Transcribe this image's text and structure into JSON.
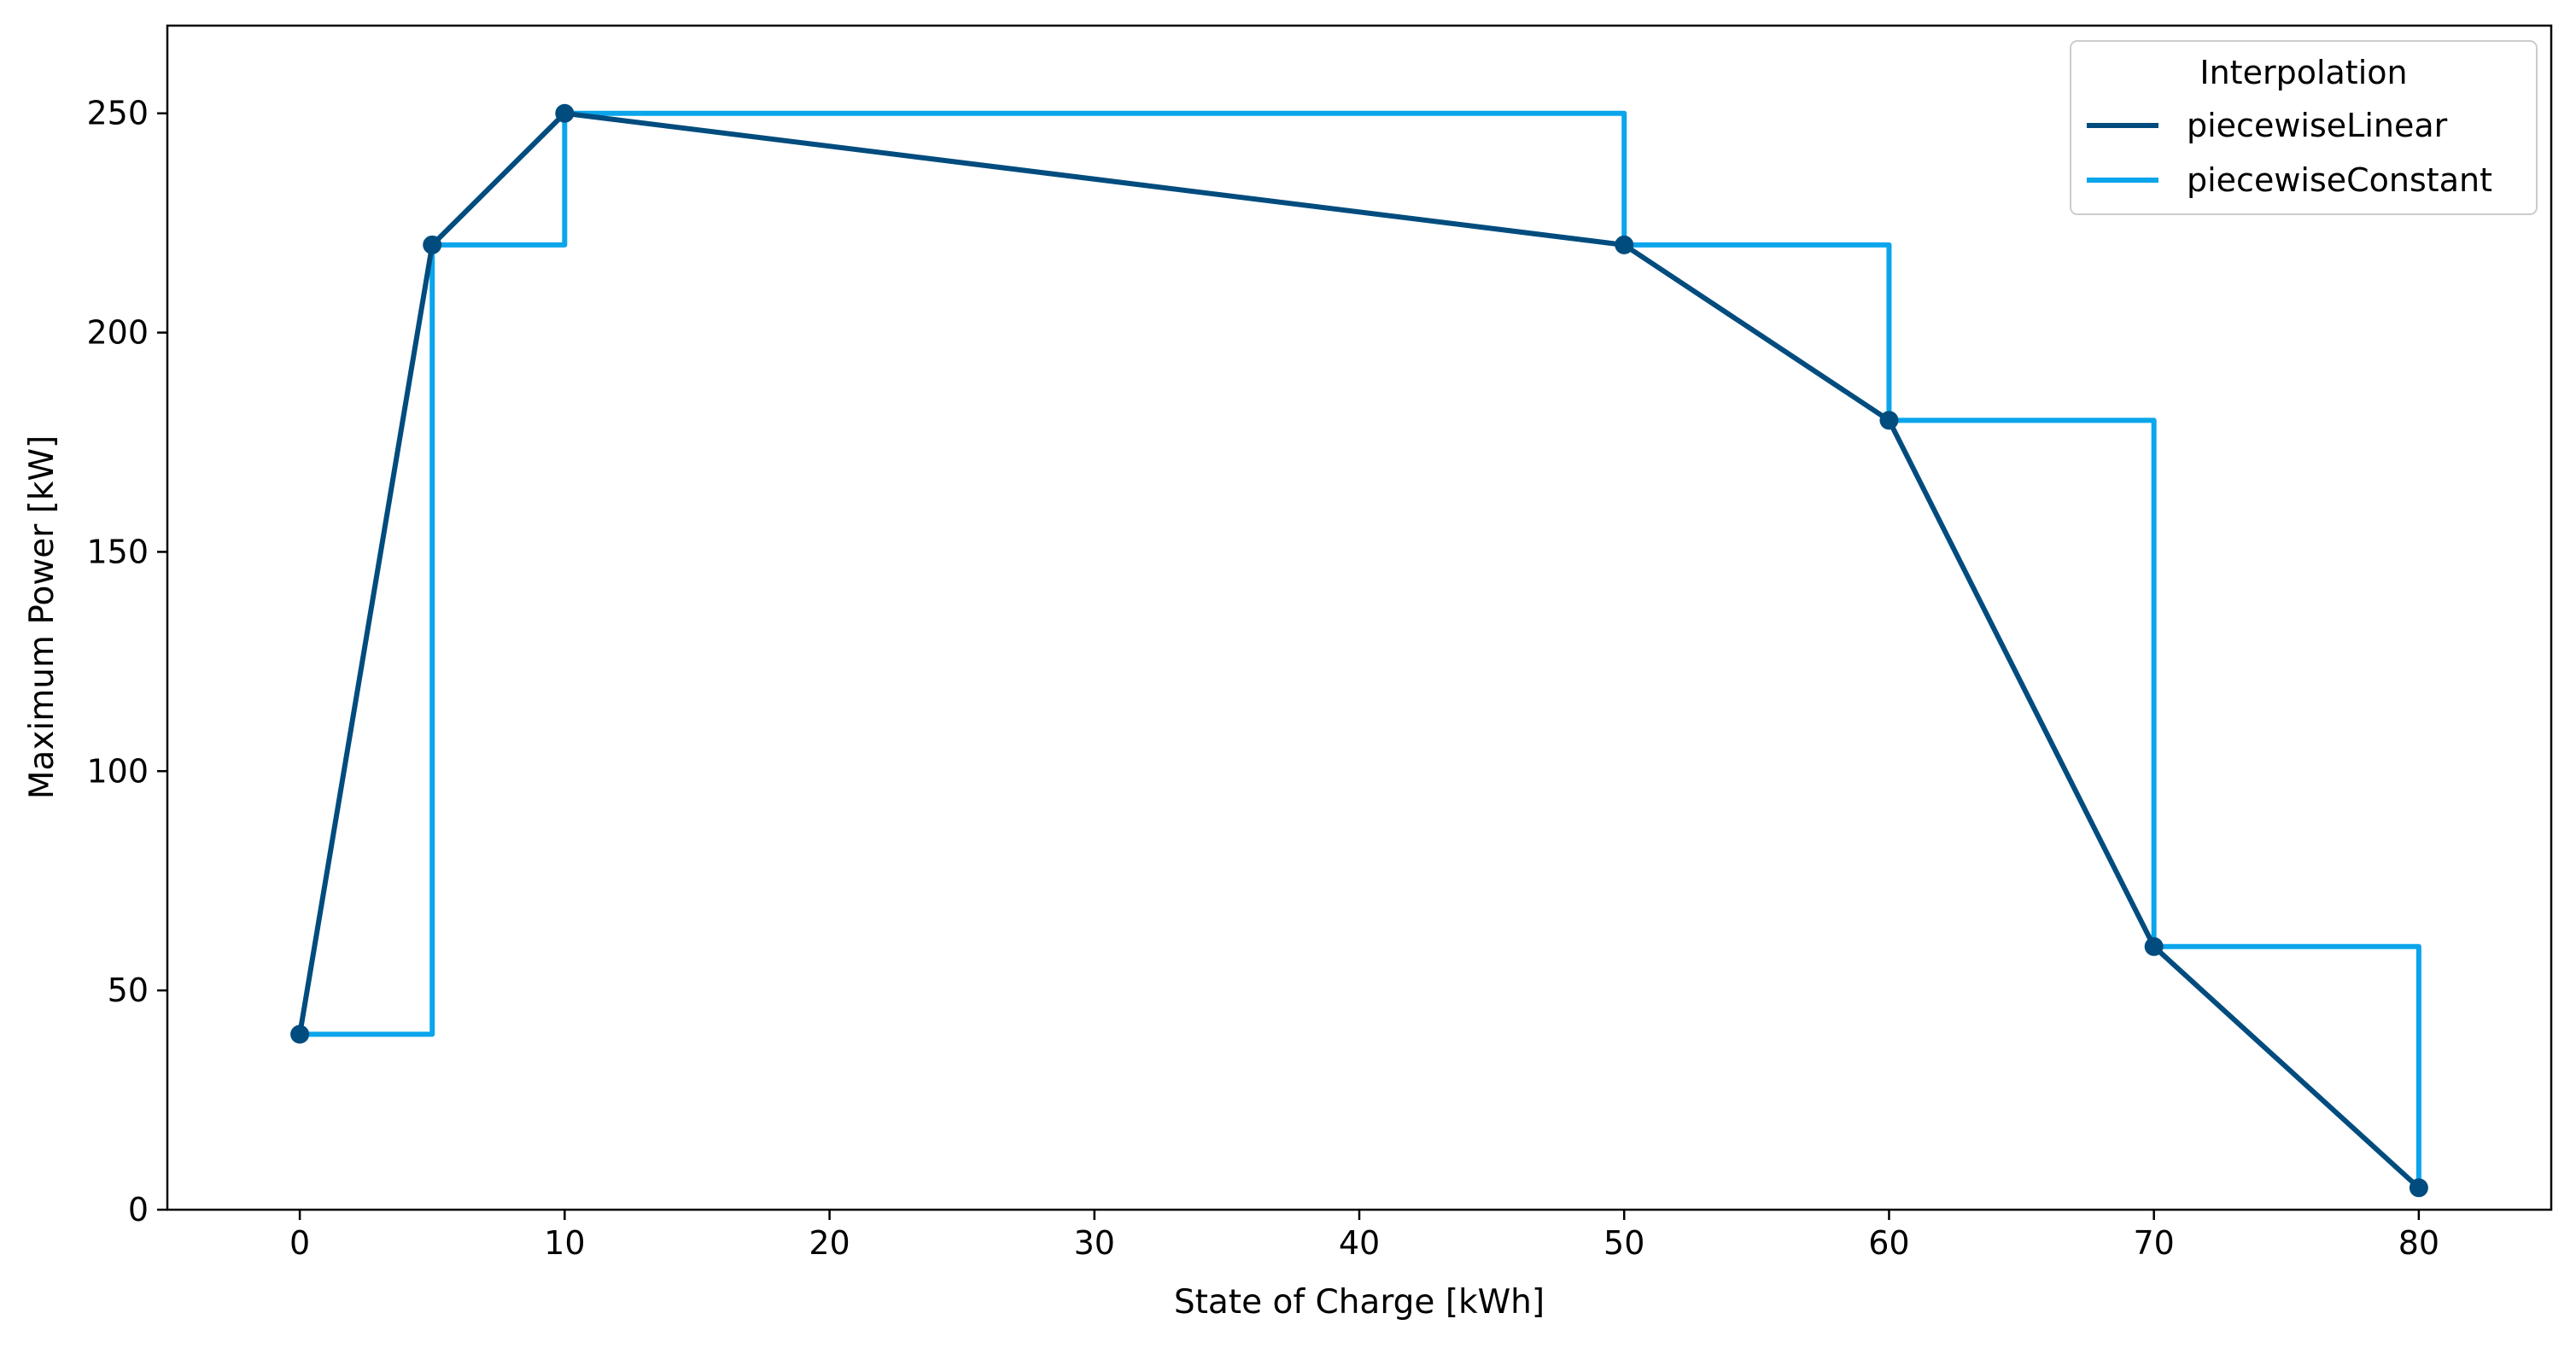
{
  "chart_data": {
    "type": "line",
    "title": "",
    "xlabel": "State of Charge [kWh]",
    "ylabel": "Maximum Power [kW]",
    "xlim": [
      -5,
      85
    ],
    "ylim": [
      0,
      270
    ],
    "xticks": [
      0,
      10,
      20,
      30,
      40,
      50,
      60,
      70,
      80
    ],
    "yticks": [
      0,
      50,
      100,
      150,
      200,
      250
    ],
    "grid": false,
    "legend": {
      "title": "Interpolation",
      "position": "top-right"
    },
    "points": {
      "x": [
        0,
        5,
        10,
        50,
        60,
        70,
        80
      ],
      "y": [
        40,
        220,
        250,
        220,
        180,
        60,
        5
      ]
    },
    "series": [
      {
        "name": "piecewiseLinear",
        "color": "#004c7e",
        "interpolation": "linear",
        "markers": true
      },
      {
        "name": "piecewiseConstant",
        "color": "#0ba5ec",
        "interpolation": "step-post",
        "markers": false
      }
    ]
  }
}
